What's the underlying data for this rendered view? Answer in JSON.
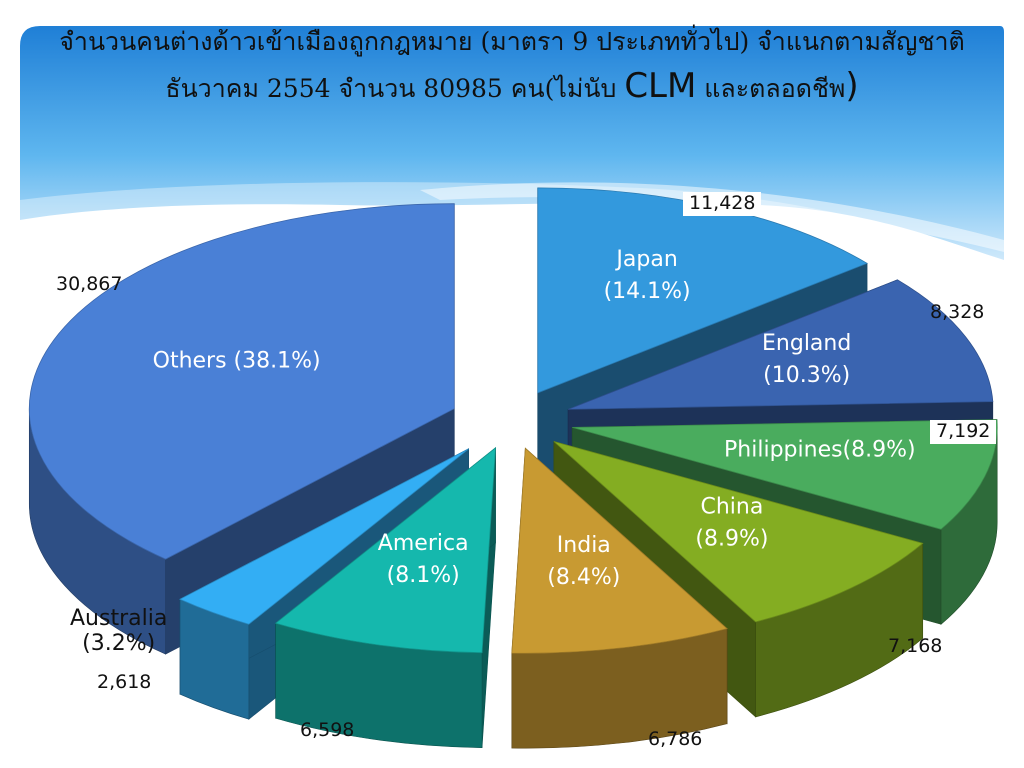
{
  "title": {
    "line1": "จำนวนคนต่างด้าวเข้าเมืองถูกกฎหมาย (มาตรา 9 ประเภททั่วไป) จำแนกตามสัญชาติ",
    "line2_a": "ธันวาคม 2554 จำนวน 80985 คน(ไม่นับ ",
    "line2_b": "CLM",
    "line2_c": " และตลอดชีพ",
    "line2_d": ")"
  },
  "chart_data": {
    "type": "pie",
    "style": "3d-exploded",
    "categories": [
      "Japan",
      "England",
      "Philippines",
      "China",
      "India",
      "America",
      "Australia",
      "Others"
    ],
    "values": [
      11428,
      8328,
      7192,
      7168,
      6786,
      6598,
      2618,
      30867
    ],
    "value_labels": [
      "11,428",
      "8,328",
      "7,192",
      "7,168",
      "6,786",
      "6,598",
      "2,618",
      "30,867"
    ],
    "percent_labels": [
      "(14.1%)",
      "(10.3%)",
      "(8.9%)",
      "(8.9%)",
      "(8.4%)",
      "(8.1%)",
      "(3.2%)",
      "(38.1%)"
    ],
    "slice_labels": [
      [
        "Japan",
        "(14.1%)"
      ],
      [
        "England",
        "(10.3%)"
      ],
      [
        "Philippines(8.9%)"
      ],
      [
        "China",
        "(8.9%)"
      ],
      [
        "India",
        "(8.4%)"
      ],
      [
        "America",
        "(8.1%)"
      ],
      [
        "Australia",
        "(3.2%)"
      ],
      [
        "Others (38.1%)"
      ]
    ],
    "colors": [
      "#3399dd",
      "#3a64b0",
      "#4aac5e",
      "#84ad22",
      "#c89a32",
      "#15b8ad",
      "#33aef4",
      "#4a80d6"
    ],
    "legend": "none"
  }
}
